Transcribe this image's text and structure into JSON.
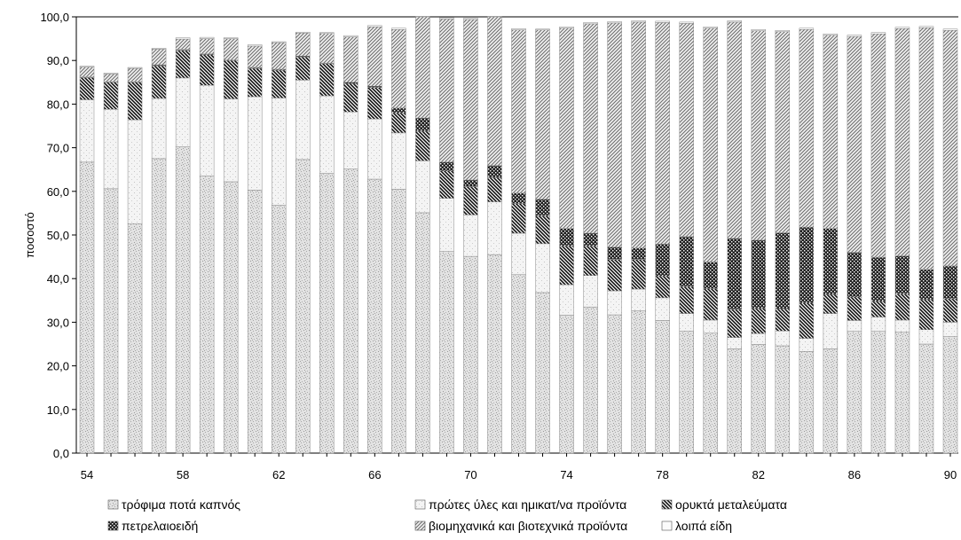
{
  "chart_data": {
    "type": "bar",
    "stacked": true,
    "ylabel": "ποσοστό",
    "ylim": [
      0,
      100
    ],
    "y_ticks": [
      "0,0",
      "10,0",
      "20,0",
      "30,0",
      "40,0",
      "50,0",
      "60,0",
      "70,0",
      "80,0",
      "90,0",
      "100,0"
    ],
    "x_tick_labels": [
      "54",
      "58",
      "62",
      "66",
      "70",
      "74",
      "78",
      "82",
      "86",
      "90"
    ],
    "categories": [
      "54",
      "55",
      "56",
      "57",
      "58",
      "59",
      "60",
      "61",
      "62",
      "63",
      "64",
      "65",
      "66",
      "67",
      "68",
      "69",
      "70",
      "71",
      "72",
      "73",
      "74",
      "75",
      "76",
      "77",
      "78",
      "79",
      "80",
      "81",
      "82",
      "83",
      "84",
      "85",
      "86",
      "87",
      "88",
      "89",
      "90"
    ],
    "grid": false,
    "legend_position": "bottom",
    "series": [
      {
        "name": "τρόφιμα ποτά καπνός",
        "color": "#cfcfcf",
        "pattern": "speckle-light",
        "values": [
          66.7,
          60.6,
          52.6,
          67.5,
          70.2,
          63.5,
          62.2,
          60.3,
          56.8,
          67.3,
          64.1,
          65.1,
          62.8,
          60.5,
          55.1,
          46.2,
          45.1,
          45.5,
          40.9,
          36.8,
          31.6,
          33.5,
          31.7,
          32.6,
          30.4,
          28.0,
          27.5,
          23.9,
          24.9,
          24.6,
          23.3,
          23.9,
          27.9,
          27.9,
          27.7,
          25.0,
          26.7
        ]
      },
      {
        "name": "πρώτες ύλες και ημικατ/να προϊόντα",
        "color": "#e4e4e4",
        "pattern": "speckle-faint",
        "values": [
          14.3,
          18.2,
          23.8,
          13.8,
          15.8,
          20.8,
          19.0,
          21.4,
          24.6,
          18.2,
          17.8,
          13.1,
          13.8,
          12.9,
          11.9,
          12.2,
          9.5,
          12.1,
          9.5,
          11.2,
          7.0,
          7.2,
          5.5,
          5.0,
          5.2,
          4.0,
          3.0,
          2.6,
          2.5,
          3.4,
          3.0,
          8.1,
          2.5,
          3.3,
          2.8,
          3.3,
          3.3
        ]
      },
      {
        "name": "ορυκτά μεταλεύματα",
        "color": "#555555",
        "pattern": "diag-dark",
        "values": [
          5.1,
          6.2,
          8.6,
          7.5,
          6.3,
          7.0,
          8.8,
          6.5,
          6.4,
          5.3,
          7.4,
          6.5,
          7.2,
          4.6,
          6.8,
          6.3,
          6.5,
          5.6,
          6.8,
          6.4,
          8.9,
          6.8,
          7.2,
          6.8,
          5.0,
          6.2,
          7.2,
          6.5,
          5.8,
          5.1,
          8.1,
          4.4,
          5.4,
          3.6,
          6.0,
          6.9,
          5.4
        ]
      },
      {
        "name": "πετρελαιοειδή",
        "color": "#333333",
        "pattern": "cross-dark",
        "values": [
          0.1,
          0.1,
          0.1,
          0.2,
          0.2,
          0.2,
          0.1,
          0.2,
          0.2,
          0.2,
          0.1,
          0.3,
          0.3,
          1.1,
          3.0,
          2.0,
          1.5,
          2.7,
          2.4,
          3.8,
          4.0,
          2.9,
          2.8,
          2.6,
          7.3,
          11.4,
          6.1,
          16.2,
          15.6,
          17.4,
          17.4,
          15.1,
          10.2,
          10.1,
          8.7,
          6.9,
          7.5
        ]
      },
      {
        "name": "βιομηχανικά και βιοτεχνικά προϊόντα",
        "color": "#8a8a8a",
        "pattern": "diag-light",
        "values": [
          2.3,
          1.8,
          3.1,
          3.6,
          2.4,
          3.5,
          4.9,
          4.9,
          6.1,
          5.3,
          6.8,
          10.4,
          13.6,
          18.0,
          23.2,
          32.8,
          36.8,
          34.6,
          37.4,
          38.8,
          45.9,
          48.0,
          51.4,
          51.8,
          50.8,
          48.9,
          53.6,
          49.6,
          48.0,
          46.1,
          45.3,
          44.3,
          49.5,
          51.2,
          52.1,
          55.4,
          54.0
        ]
      },
      {
        "name": "λοιπά είδη",
        "color": "#f2f2f2",
        "pattern": "faint",
        "values": [
          0.2,
          0.2,
          0.2,
          0.2,
          0.3,
          0.3,
          0.2,
          0.3,
          0.2,
          0.2,
          0.2,
          0.3,
          0.3,
          0.3,
          0.2,
          0.3,
          0.3,
          0.3,
          0.3,
          0.2,
          0.3,
          0.3,
          0.3,
          0.3,
          0.3,
          0.3,
          0.3,
          0.3,
          0.3,
          0.3,
          0.3,
          0.3,
          0.3,
          0.3,
          0.3,
          0.3,
          0.3
        ]
      }
    ]
  }
}
